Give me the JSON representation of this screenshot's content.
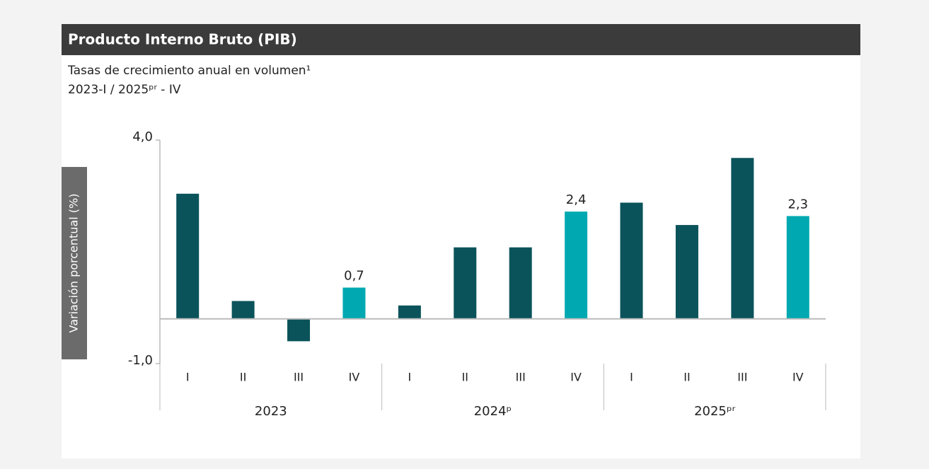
{
  "chart_data": {
    "type": "bar",
    "title": "Producto Interno Bruto (PIB)",
    "subtitle": "Tasas de crecimiento anual en volumen¹",
    "period": "2023-I / 2025ᵖʳ - IV",
    "y_label": "Variación porcentual (%)",
    "categories": [
      "I",
      "II",
      "III",
      "IV",
      "I",
      "II",
      "III",
      "IV",
      "I",
      "II",
      "III",
      "IV"
    ],
    "groups": [
      "2023",
      "2024ᵖ",
      "2025ᵖʳ"
    ],
    "values": [
      2.8,
      0.4,
      -0.5,
      0.7,
      0.3,
      1.6,
      1.6,
      2.4,
      2.6,
      2.1,
      3.6,
      2.3
    ],
    "value_labels": [
      null,
      null,
      null,
      "0,7",
      null,
      null,
      null,
      "2,4",
      null,
      null,
      null,
      "2,3"
    ],
    "colors": [
      "#0a535b",
      "#0a535b",
      "#0a535b",
      "#00a9b1",
      "#0a535b",
      "#0a535b",
      "#0a535b",
      "#00a9b1",
      "#0a535b",
      "#0a535b",
      "#0a535b",
      "#00a9b1"
    ],
    "ylim": [
      -1,
      4
    ],
    "yticks": [
      {
        "value": 4,
        "label": "4,0"
      },
      {
        "value": -1,
        "label": "-1,0"
      }
    ]
  }
}
